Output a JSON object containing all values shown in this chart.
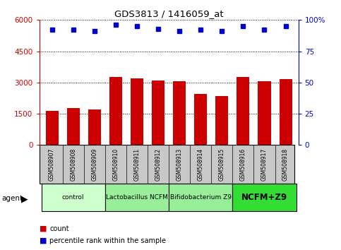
{
  "title": "GDS3813 / 1416059_at",
  "samples": [
    "GSM508907",
    "GSM508908",
    "GSM508909",
    "GSM508910",
    "GSM508911",
    "GSM508912",
    "GSM508913",
    "GSM508914",
    "GSM508915",
    "GSM508916",
    "GSM508917",
    "GSM508918"
  ],
  "counts": [
    1650,
    1780,
    1700,
    3250,
    3200,
    3100,
    3050,
    2450,
    2350,
    3250,
    3050,
    3150
  ],
  "percentiles": [
    92,
    92,
    91,
    96,
    95,
    93,
    91,
    92,
    91,
    95,
    92,
    95
  ],
  "bar_color": "#cc0000",
  "dot_color": "#0000cc",
  "ylim_left": [
    0,
    6000
  ],
  "ylim_right": [
    0,
    100
  ],
  "yticks_left": [
    0,
    1500,
    3000,
    4500,
    6000
  ],
  "yticks_right": [
    0,
    25,
    50,
    75,
    100
  ],
  "yticklabels_right": [
    "0",
    "25",
    "50",
    "75",
    "100%"
  ],
  "groups": [
    {
      "label": "control",
      "start": 0,
      "end": 3,
      "color": "#ccffcc"
    },
    {
      "label": "Lactobacillus NCFM",
      "start": 3,
      "end": 6,
      "color": "#99ee99"
    },
    {
      "label": "Bifidobacterium Z9",
      "start": 6,
      "end": 9,
      "color": "#99ee99"
    },
    {
      "label": "NCFM+Z9",
      "start": 9,
      "end": 12,
      "color": "#33dd33"
    }
  ],
  "agent_label": "agent",
  "legend_count_label": "count",
  "legend_pct_label": "percentile rank within the sample",
  "tick_area_color": "#c8c8c8",
  "background_color": "#ffffff",
  "grid_color": "#000000",
  "left_axis_color": "#cc0000",
  "right_axis_color": "#0000cc"
}
